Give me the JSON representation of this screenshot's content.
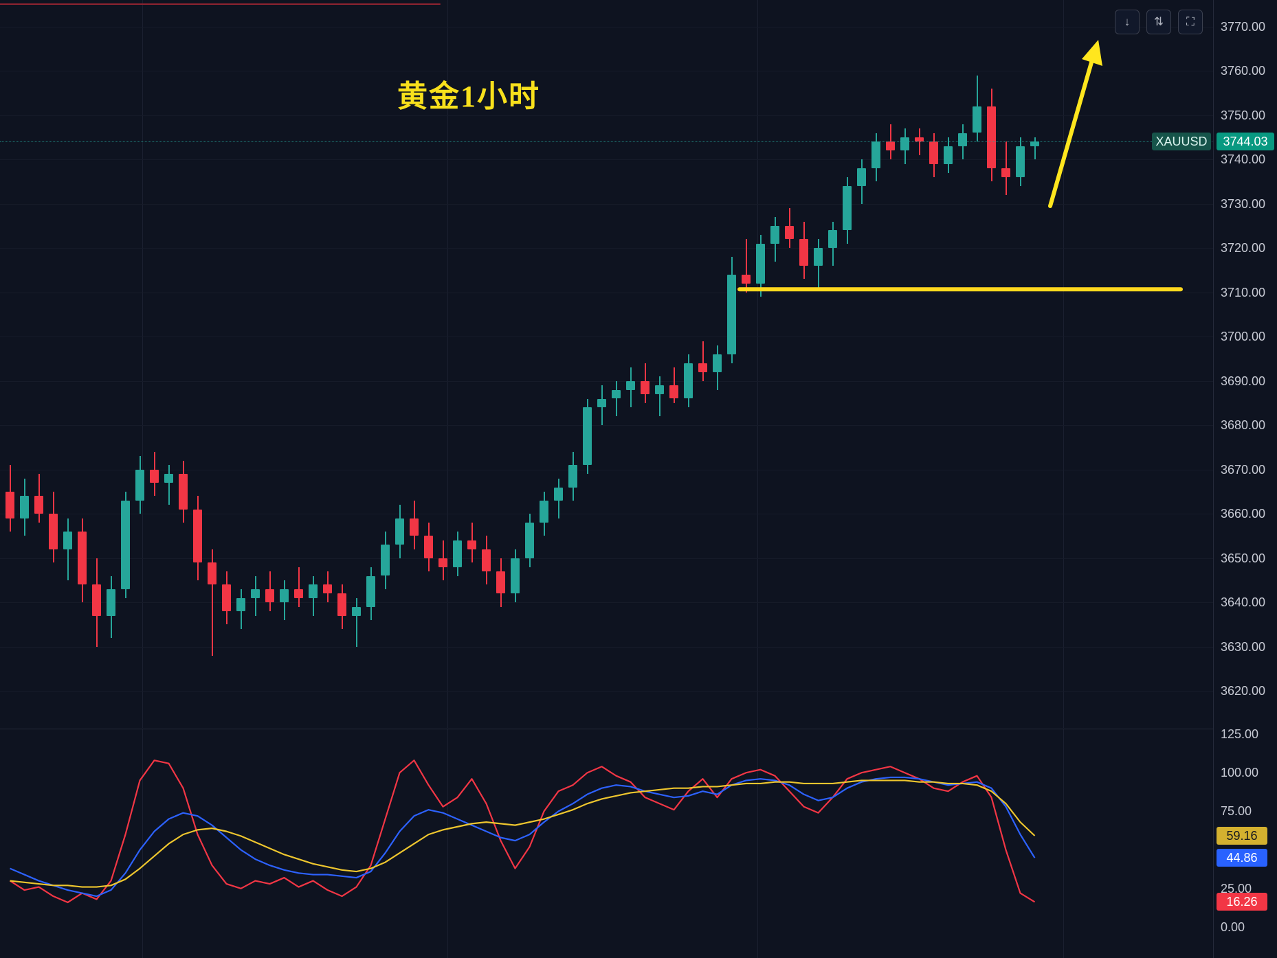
{
  "window": {
    "title": "黄金1小时"
  },
  "toolbar": {
    "buttons": [
      {
        "name": "scroll-down",
        "glyph": "↓"
      },
      {
        "name": "collapse-pane",
        "glyph": "⇅"
      },
      {
        "name": "restore-pane",
        "glyph": "⛶"
      }
    ]
  },
  "price_label": {
    "symbol": "XAUUSD",
    "price": "3744.03"
  },
  "chart_data": {
    "type": "candlestick",
    "title": "黄金1小时",
    "symbol": "XAUUSD",
    "interval": "1h",
    "last_price": 3744.03,
    "up_color": "#26a69a",
    "down_color": "#f23645",
    "price_axis": {
      "ticks": [
        3770,
        3760,
        3750,
        3740,
        3730,
        3720,
        3710,
        3700,
        3690,
        3680,
        3670,
        3660,
        3650,
        3640,
        3630,
        3620
      ],
      "visible_range": [
        3612,
        3776
      ]
    },
    "candles": [
      [
        3665,
        3671,
        3656,
        3659
      ],
      [
        3659,
        3668,
        3655,
        3664
      ],
      [
        3664,
        3669,
        3658,
        3660
      ],
      [
        3660,
        3665,
        3649,
        3652
      ],
      [
        3652,
        3659,
        3645,
        3656
      ],
      [
        3656,
        3659,
        3640,
        3644
      ],
      [
        3644,
        3650,
        3630,
        3637
      ],
      [
        3637,
        3646,
        3632,
        3643
      ],
      [
        3643,
        3665,
        3641,
        3663
      ],
      [
        3663,
        3673,
        3660,
        3670
      ],
      [
        3670,
        3674,
        3664,
        3667
      ],
      [
        3667,
        3671,
        3662,
        3669
      ],
      [
        3669,
        3672,
        3658,
        3661
      ],
      [
        3661,
        3664,
        3645,
        3649
      ],
      [
        3649,
        3652,
        3628,
        3644
      ],
      [
        3644,
        3647,
        3635,
        3638
      ],
      [
        3638,
        3643,
        3634,
        3641
      ],
      [
        3641,
        3646,
        3637,
        3643
      ],
      [
        3643,
        3647,
        3638,
        3640
      ],
      [
        3640,
        3645,
        3636,
        3643
      ],
      [
        3643,
        3648,
        3639,
        3641
      ],
      [
        3641,
        3646,
        3637,
        3644
      ],
      [
        3644,
        3647,
        3640,
        3642
      ],
      [
        3642,
        3644,
        3634,
        3637
      ],
      [
        3637,
        3641,
        3630,
        3639
      ],
      [
        3639,
        3648,
        3636,
        3646
      ],
      [
        3646,
        3656,
        3643,
        3653
      ],
      [
        3653,
        3662,
        3650,
        3659
      ],
      [
        3659,
        3663,
        3652,
        3655
      ],
      [
        3655,
        3658,
        3647,
        3650
      ],
      [
        3650,
        3654,
        3645,
        3648
      ],
      [
        3648,
        3656,
        3646,
        3654
      ],
      [
        3654,
        3658,
        3649,
        3652
      ],
      [
        3652,
        3655,
        3644,
        3647
      ],
      [
        3647,
        3650,
        3639,
        3642
      ],
      [
        3642,
        3652,
        3640,
        3650
      ],
      [
        3650,
        3660,
        3648,
        3658
      ],
      [
        3658,
        3665,
        3655,
        3663
      ],
      [
        3663,
        3668,
        3659,
        3666
      ],
      [
        3666,
        3674,
        3663,
        3671
      ],
      [
        3671,
        3686,
        3669,
        3684
      ],
      [
        3684,
        3689,
        3680,
        3686
      ],
      [
        3686,
        3690,
        3682,
        3688
      ],
      [
        3688,
        3693,
        3684,
        3690
      ],
      [
        3690,
        3694,
        3685,
        3687
      ],
      [
        3687,
        3691,
        3682,
        3689
      ],
      [
        3689,
        3693,
        3685,
        3686
      ],
      [
        3686,
        3696,
        3684,
        3694
      ],
      [
        3694,
        3699,
        3690,
        3692
      ],
      [
        3692,
        3698,
        3688,
        3696
      ],
      [
        3696,
        3718,
        3694,
        3714
      ],
      [
        3714,
        3722,
        3710,
        3712
      ],
      [
        3712,
        3723,
        3709,
        3721
      ],
      [
        3721,
        3727,
        3717,
        3725
      ],
      [
        3725,
        3729,
        3720,
        3722
      ],
      [
        3722,
        3726,
        3713,
        3716
      ],
      [
        3716,
        3722,
        3711,
        3720
      ],
      [
        3720,
        3726,
        3716,
        3724
      ],
      [
        3724,
        3736,
        3721,
        3734
      ],
      [
        3734,
        3740,
        3730,
        3738
      ],
      [
        3738,
        3746,
        3735,
        3744
      ],
      [
        3744,
        3748,
        3740,
        3742
      ],
      [
        3742,
        3747,
        3739,
        3745
      ],
      [
        3745,
        3747,
        3741,
        3744
      ],
      [
        3744,
        3746,
        3736,
        3739
      ],
      [
        3739,
        3745,
        3737,
        3743
      ],
      [
        3743,
        3748,
        3740,
        3746
      ],
      [
        3746,
        3759,
        3744,
        3752
      ],
      [
        3752,
        3756,
        3735,
        3738
      ],
      [
        3738,
        3744,
        3732,
        3736
      ],
      [
        3736,
        3745,
        3734,
        3743
      ],
      [
        3743,
        3745,
        3740,
        3744
      ]
    ],
    "annotations": {
      "support_line": {
        "price": 3711,
        "color": "#ffd81e"
      },
      "trend_arrow": {
        "direction": "up",
        "color": "#ffe61e"
      },
      "top_red_line": {
        "color": "#8f2330"
      },
      "last_price_dotted_line": 3744.03
    },
    "indicator": {
      "name": "stochastic",
      "ticks": [
        125,
        100,
        75,
        25,
        0
      ],
      "range": [
        0,
        125
      ],
      "series": [
        {
          "name": "fast",
          "color": "#f23645",
          "last_label": "16.26",
          "values": [
            30,
            24,
            26,
            20,
            16,
            22,
            18,
            30,
            60,
            95,
            108,
            106,
            90,
            60,
            40,
            28,
            25,
            30,
            28,
            32,
            26,
            30,
            24,
            20,
            26,
            40,
            70,
            100,
            108,
            92,
            78,
            84,
            96,
            80,
            56,
            38,
            52,
            75,
            88,
            92,
            100,
            104,
            98,
            94,
            84,
            80,
            76,
            88,
            96,
            84,
            96,
            100,
            102,
            98,
            88,
            78,
            74,
            84,
            96,
            100,
            102,
            104,
            100,
            96,
            90,
            88,
            94,
            98,
            84,
            50,
            22,
            16.26
          ]
        },
        {
          "name": "mid",
          "color": "#2d62ff",
          "last_label": "44.86",
          "values": [
            38,
            34,
            30,
            27,
            24,
            22,
            20,
            24,
            35,
            50,
            62,
            70,
            74,
            72,
            66,
            58,
            50,
            44,
            40,
            37,
            35,
            34,
            34,
            33,
            32,
            36,
            48,
            62,
            72,
            76,
            74,
            70,
            66,
            62,
            58,
            56,
            60,
            68,
            75,
            80,
            86,
            90,
            92,
            91,
            88,
            86,
            84,
            85,
            88,
            86,
            92,
            95,
            96,
            95,
            92,
            86,
            82,
            84,
            90,
            94,
            96,
            97,
            97,
            96,
            94,
            92,
            93,
            94,
            90,
            78,
            60,
            44.86
          ]
        },
        {
          "name": "slow",
          "color": "#eec62e",
          "last_label": "59.16",
          "values": [
            30,
            29,
            28,
            27,
            27,
            26,
            26,
            27,
            31,
            38,
            46,
            54,
            60,
            63,
            64,
            62,
            59,
            55,
            51,
            47,
            44,
            41,
            39,
            37,
            36,
            38,
            42,
            48,
            54,
            60,
            63,
            65,
            67,
            68,
            67,
            66,
            68,
            70,
            73,
            76,
            80,
            83,
            85,
            87,
            88,
            89,
            90,
            90,
            91,
            91,
            92,
            93,
            93,
            94,
            94,
            93,
            93,
            93,
            94,
            95,
            95,
            95,
            95,
            94,
            94,
            93,
            93,
            92,
            88,
            80,
            68,
            59.16
          ]
        }
      ]
    }
  }
}
